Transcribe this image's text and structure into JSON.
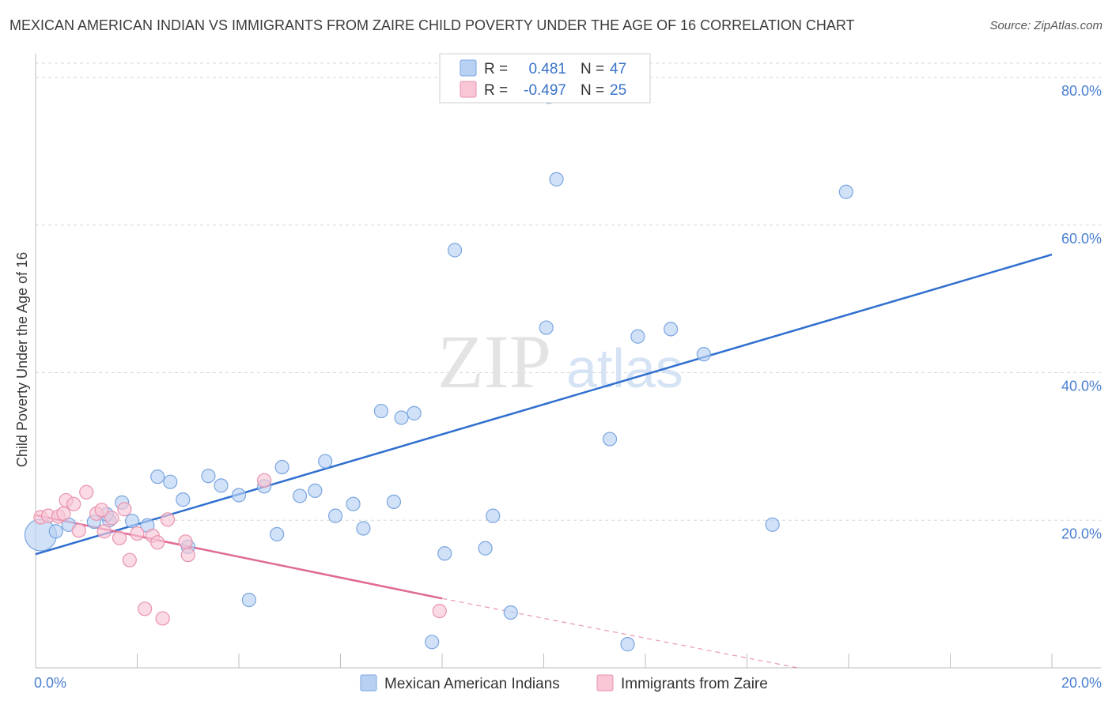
{
  "title": "MEXICAN AMERICAN INDIAN VS IMMIGRANTS FROM ZAIRE CHILD POVERTY UNDER THE AGE OF 16 CORRELATION CHART",
  "source": "Source: ZipAtlas.com",
  "watermark": {
    "zip": "ZIP",
    "atlas": "atlas"
  },
  "colors": {
    "blue_fill": "#b8d1f3",
    "blue_stroke": "#7aa6e0",
    "blue_line": "#2f6fcf",
    "pink_fill": "#f8c6d5",
    "pink_stroke": "#e993ae",
    "pink_line": "#e06a94",
    "grid": "#d7d7d7",
    "tick_text": "#4a7fd1"
  },
  "legend": {
    "rows": [
      {
        "r_label": "R =",
        "r_value": "0.481",
        "n_label": "N =",
        "n_value": "47"
      },
      {
        "r_label": "R =",
        "r_value": "-0.497",
        "n_label": "N =",
        "n_value": "25"
      }
    ]
  },
  "chart_data": {
    "type": "scatter",
    "title": "MEXICAN AMERICAN INDIAN VS IMMIGRANTS FROM ZAIRE CHILD POVERTY UNDER THE AGE OF 16 CORRELATION CHART",
    "xlabel": "",
    "ylabel": "Child Poverty Under the Age of 16",
    "xlim": [
      0,
      20
    ],
    "ylim": [
      0,
      80
    ],
    "x_tick_labels": [
      "0.0%",
      "20.0%"
    ],
    "y_ticks": [
      20,
      40,
      60,
      80
    ],
    "y_tick_labels": [
      "20.0%",
      "40.0%",
      "60.0%",
      "80.0%"
    ],
    "grid": true,
    "legend_position": "top-center",
    "series": [
      {
        "name": "Mexican American Indians",
        "color": "#b8d1f3",
        "trend": {
          "x": [
            0,
            20
          ],
          "y": [
            15.4,
            56.0
          ]
        },
        "points": [
          {
            "x": 0.1,
            "y": 18.0,
            "big": true
          },
          {
            "x": 0.4,
            "y": 18.5
          },
          {
            "x": 0.65,
            "y": 19.4
          },
          {
            "x": 1.15,
            "y": 19.8
          },
          {
            "x": 1.45,
            "y": 20.0
          },
          {
            "x": 1.4,
            "y": 20.8
          },
          {
            "x": 1.7,
            "y": 22.4
          },
          {
            "x": 1.9,
            "y": 19.9
          },
          {
            "x": 2.2,
            "y": 19.3
          },
          {
            "x": 2.4,
            "y": 25.9
          },
          {
            "x": 2.65,
            "y": 25.2
          },
          {
            "x": 2.9,
            "y": 22.8
          },
          {
            "x": 3.0,
            "y": 16.4
          },
          {
            "x": 3.4,
            "y": 26.0
          },
          {
            "x": 3.65,
            "y": 24.7
          },
          {
            "x": 4.0,
            "y": 23.4
          },
          {
            "x": 4.2,
            "y": 9.2
          },
          {
            "x": 4.5,
            "y": 24.6
          },
          {
            "x": 4.75,
            "y": 18.1
          },
          {
            "x": 4.85,
            "y": 27.2
          },
          {
            "x": 5.2,
            "y": 23.3
          },
          {
            "x": 5.5,
            "y": 24.0
          },
          {
            "x": 5.7,
            "y": 28.0
          },
          {
            "x": 5.9,
            "y": 20.6
          },
          {
            "x": 6.25,
            "y": 22.2
          },
          {
            "x": 6.45,
            "y": 18.9
          },
          {
            "x": 6.8,
            "y": 34.8
          },
          {
            "x": 7.05,
            "y": 22.5
          },
          {
            "x": 7.2,
            "y": 33.9
          },
          {
            "x": 7.45,
            "y": 34.5
          },
          {
            "x": 7.8,
            "y": 3.5
          },
          {
            "x": 8.05,
            "y": 15.5
          },
          {
            "x": 8.25,
            "y": 56.6
          },
          {
            "x": 8.85,
            "y": 16.2
          },
          {
            "x": 9.0,
            "y": 20.6
          },
          {
            "x": 9.35,
            "y": 7.5
          },
          {
            "x": 9.8,
            "y": 77.6
          },
          {
            "x": 10.1,
            "y": 77.4
          },
          {
            "x": 10.05,
            "y": 46.1
          },
          {
            "x": 10.25,
            "y": 66.2
          },
          {
            "x": 11.0,
            "y": 77.9
          },
          {
            "x": 11.3,
            "y": 31.0
          },
          {
            "x": 11.65,
            "y": 3.2
          },
          {
            "x": 11.85,
            "y": 44.9
          },
          {
            "x": 12.5,
            "y": 45.9
          },
          {
            "x": 13.15,
            "y": 42.5
          },
          {
            "x": 14.5,
            "y": 19.4
          },
          {
            "x": 15.95,
            "y": 64.5
          }
        ]
      },
      {
        "name": "Immigrants from Zaire",
        "color": "#f8c6d5",
        "trend": {
          "x": [
            0,
            8.0
          ],
          "y": [
            20.7,
            9.4
          ]
        },
        "trend_dashed": {
          "x": [
            8.0,
            15.0
          ],
          "y": [
            9.4,
            -1.0
          ]
        },
        "points": [
          {
            "x": 0.1,
            "y": 20.4
          },
          {
            "x": 0.25,
            "y": 20.6
          },
          {
            "x": 0.45,
            "y": 20.5
          },
          {
            "x": 0.55,
            "y": 20.9
          },
          {
            "x": 0.6,
            "y": 22.7
          },
          {
            "x": 0.75,
            "y": 22.2
          },
          {
            "x": 0.85,
            "y": 18.6
          },
          {
            "x": 1.0,
            "y": 23.8
          },
          {
            "x": 1.2,
            "y": 20.9
          },
          {
            "x": 1.3,
            "y": 21.4
          },
          {
            "x": 1.35,
            "y": 18.5
          },
          {
            "x": 1.5,
            "y": 20.3
          },
          {
            "x": 1.65,
            "y": 17.6
          },
          {
            "x": 1.75,
            "y": 21.5
          },
          {
            "x": 1.85,
            "y": 14.6
          },
          {
            "x": 2.0,
            "y": 18.2
          },
          {
            "x": 2.15,
            "y": 8.0
          },
          {
            "x": 2.3,
            "y": 17.9
          },
          {
            "x": 2.4,
            "y": 17.0
          },
          {
            "x": 2.5,
            "y": 6.7
          },
          {
            "x": 2.6,
            "y": 20.1
          },
          {
            "x": 2.95,
            "y": 17.1
          },
          {
            "x": 3.0,
            "y": 15.3
          },
          {
            "x": 4.5,
            "y": 25.4
          },
          {
            "x": 7.95,
            "y": 7.7
          }
        ]
      }
    ]
  }
}
